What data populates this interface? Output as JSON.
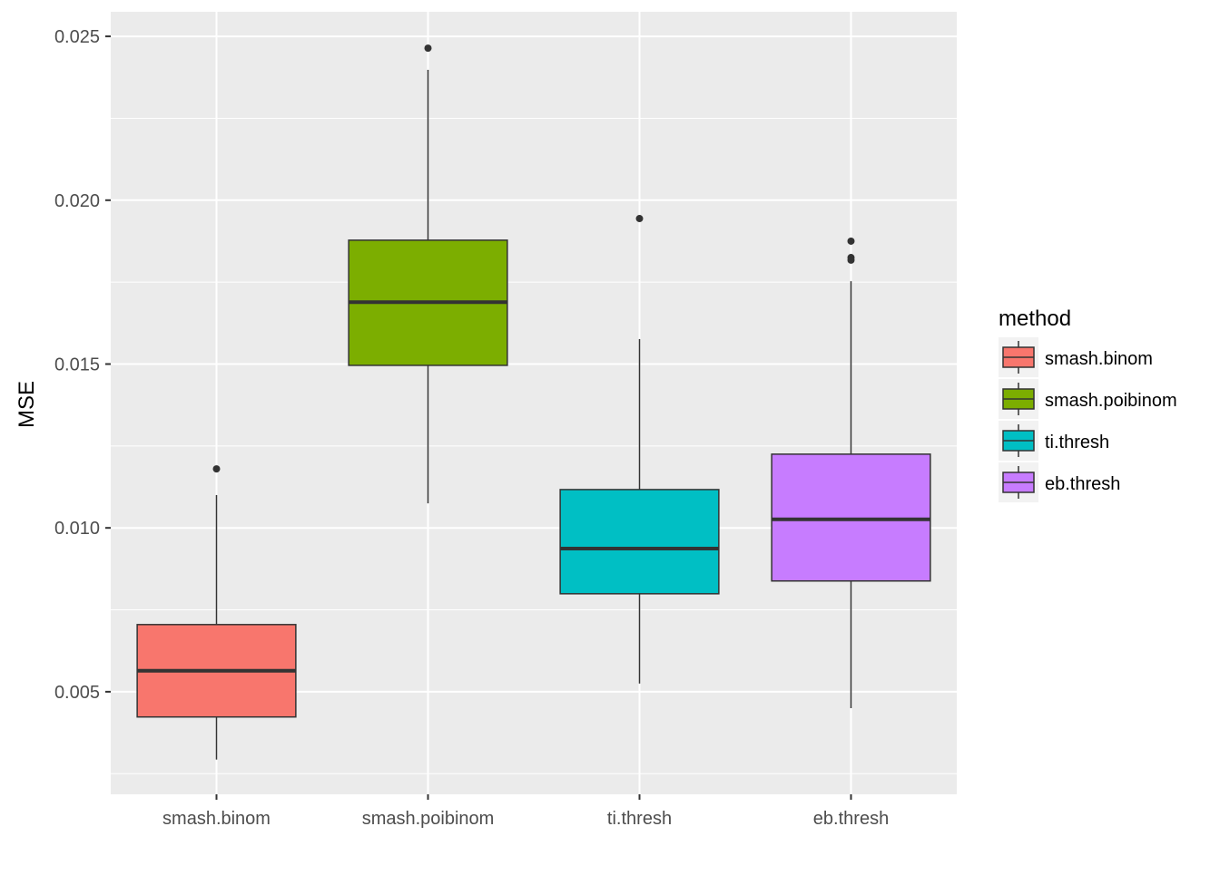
{
  "chart_data": {
    "type": "box",
    "title": "",
    "xlabel": "",
    "ylabel": "MSE",
    "ylim": [
      0.00187,
      0.02575
    ],
    "yticks": [
      0.005,
      0.01,
      0.015,
      0.02,
      0.025
    ],
    "ytick_labels": [
      "0.005",
      "0.010",
      "0.015",
      "0.020",
      "0.025"
    ],
    "grid": true,
    "categories": [
      "smash.binom",
      "smash.poibinom",
      "ti.thresh",
      "eb.thresh"
    ],
    "boxes": [
      {
        "name": "smash.binom",
        "color": "#F8766D",
        "whisker_low": 0.00293,
        "q1": 0.00423,
        "median": 0.00564,
        "q3": 0.00705,
        "whisker_high": 0.011,
        "outliers": [
          0.0118
        ]
      },
      {
        "name": "smash.poibinom",
        "color": "#7CAE00",
        "whisker_low": 0.01075,
        "q1": 0.01496,
        "median": 0.01689,
        "q3": 0.01878,
        "whisker_high": 0.02398,
        "outliers": [
          0.02464
        ]
      },
      {
        "name": "ti.thresh",
        "color": "#00BFC4",
        "whisker_low": 0.00525,
        "q1": 0.00799,
        "median": 0.00937,
        "q3": 0.01117,
        "whisker_high": 0.01576,
        "outliers": [
          0.01944
        ]
      },
      {
        "name": "eb.thresh",
        "color": "#C77CFF",
        "whisker_low": 0.0045,
        "q1": 0.00838,
        "median": 0.01026,
        "q3": 0.01225,
        "whisker_high": 0.01753,
        "outliers": [
          0.01875,
          0.01825,
          0.01817
        ]
      }
    ],
    "legend": {
      "title": "method",
      "placement": "right",
      "entries": [
        "smash.binom",
        "smash.poibinom",
        "ti.thresh",
        "eb.thresh"
      ]
    }
  }
}
